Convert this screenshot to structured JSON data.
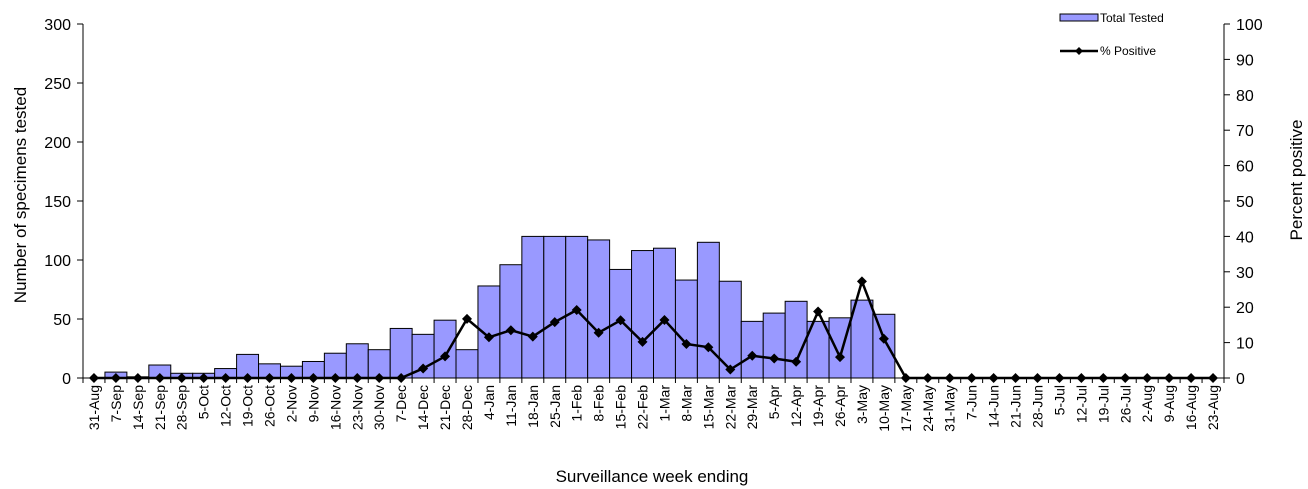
{
  "chart_data": {
    "type": "bar",
    "xlabel": "Surveillance week ending",
    "ylabel_left": "Number of specimens tested",
    "ylabel_right": "Percent positive",
    "ylim_left": [
      0,
      300
    ],
    "yticks_left": [
      0,
      50,
      100,
      150,
      200,
      250,
      300
    ],
    "ylim_right": [
      0,
      100
    ],
    "yticks_right": [
      0,
      10,
      20,
      30,
      40,
      50,
      60,
      70,
      80,
      90,
      100
    ],
    "grid": false,
    "legend_position": "top-right",
    "categories": [
      "31-Aug",
      "7-Sep",
      "14-Sep",
      "21-Sep",
      "28-Sep",
      "5-Oct",
      "12-Oct",
      "19-Oct",
      "26-Oct",
      "2-Nov",
      "9-Nov",
      "16-Nov",
      "23-Nov",
      "30-Nov",
      "7-Dec",
      "14-Dec",
      "21-Dec",
      "28-Dec",
      "4-Jan",
      "11-Jan",
      "18-Jan",
      "25-Jan",
      "1-Feb",
      "8-Feb",
      "15-Feb",
      "22-Feb",
      "1-Mar",
      "8-Mar",
      "15-Mar",
      "22-Mar",
      "29-Mar",
      "5-Apr",
      "12-Apr",
      "19-Apr",
      "26-Apr",
      "3-May",
      "10-May",
      "17-May",
      "24-May",
      "31-May",
      "7-Jun",
      "14-Jun",
      "21-Jun",
      "28-Jun",
      "5-Jul",
      "12-Jul",
      "19-Jul",
      "26-Jul",
      "2-Aug",
      "9-Aug",
      "16-Aug",
      "23-Aug"
    ],
    "series": [
      {
        "name": "Total Tested",
        "type": "bar",
        "axis": "left",
        "color": "#9999ff",
        "values": [
          0,
          5,
          1,
          11,
          4,
          4,
          8,
          20,
          12,
          10,
          14,
          21,
          29,
          24,
          42,
          37,
          49,
          24,
          78,
          96,
          120,
          120,
          120,
          117,
          92,
          108,
          110,
          83,
          115,
          82,
          48,
          55,
          65,
          48,
          51,
          66,
          54,
          0,
          0,
          0,
          0,
          0,
          0,
          0,
          0,
          0,
          0,
          0,
          0,
          0,
          0,
          0
        ]
      },
      {
        "name": "% Positive",
        "type": "line",
        "axis": "right",
        "color": "#000000",
        "values": [
          0,
          0,
          0,
          0,
          0,
          0,
          0,
          0,
          0,
          0,
          0,
          0,
          0,
          0,
          0,
          2.7,
          6.1,
          16.7,
          11.5,
          13.5,
          11.7,
          15.8,
          19.2,
          12.8,
          16.3,
          10.2,
          16.4,
          9.6,
          8.7,
          2.4,
          6.3,
          5.5,
          4.6,
          18.8,
          5.9,
          27.3,
          11.1,
          0,
          0,
          0,
          0,
          0,
          0,
          0,
          0,
          0,
          0,
          0,
          0,
          0,
          0,
          0
        ]
      }
    ]
  }
}
